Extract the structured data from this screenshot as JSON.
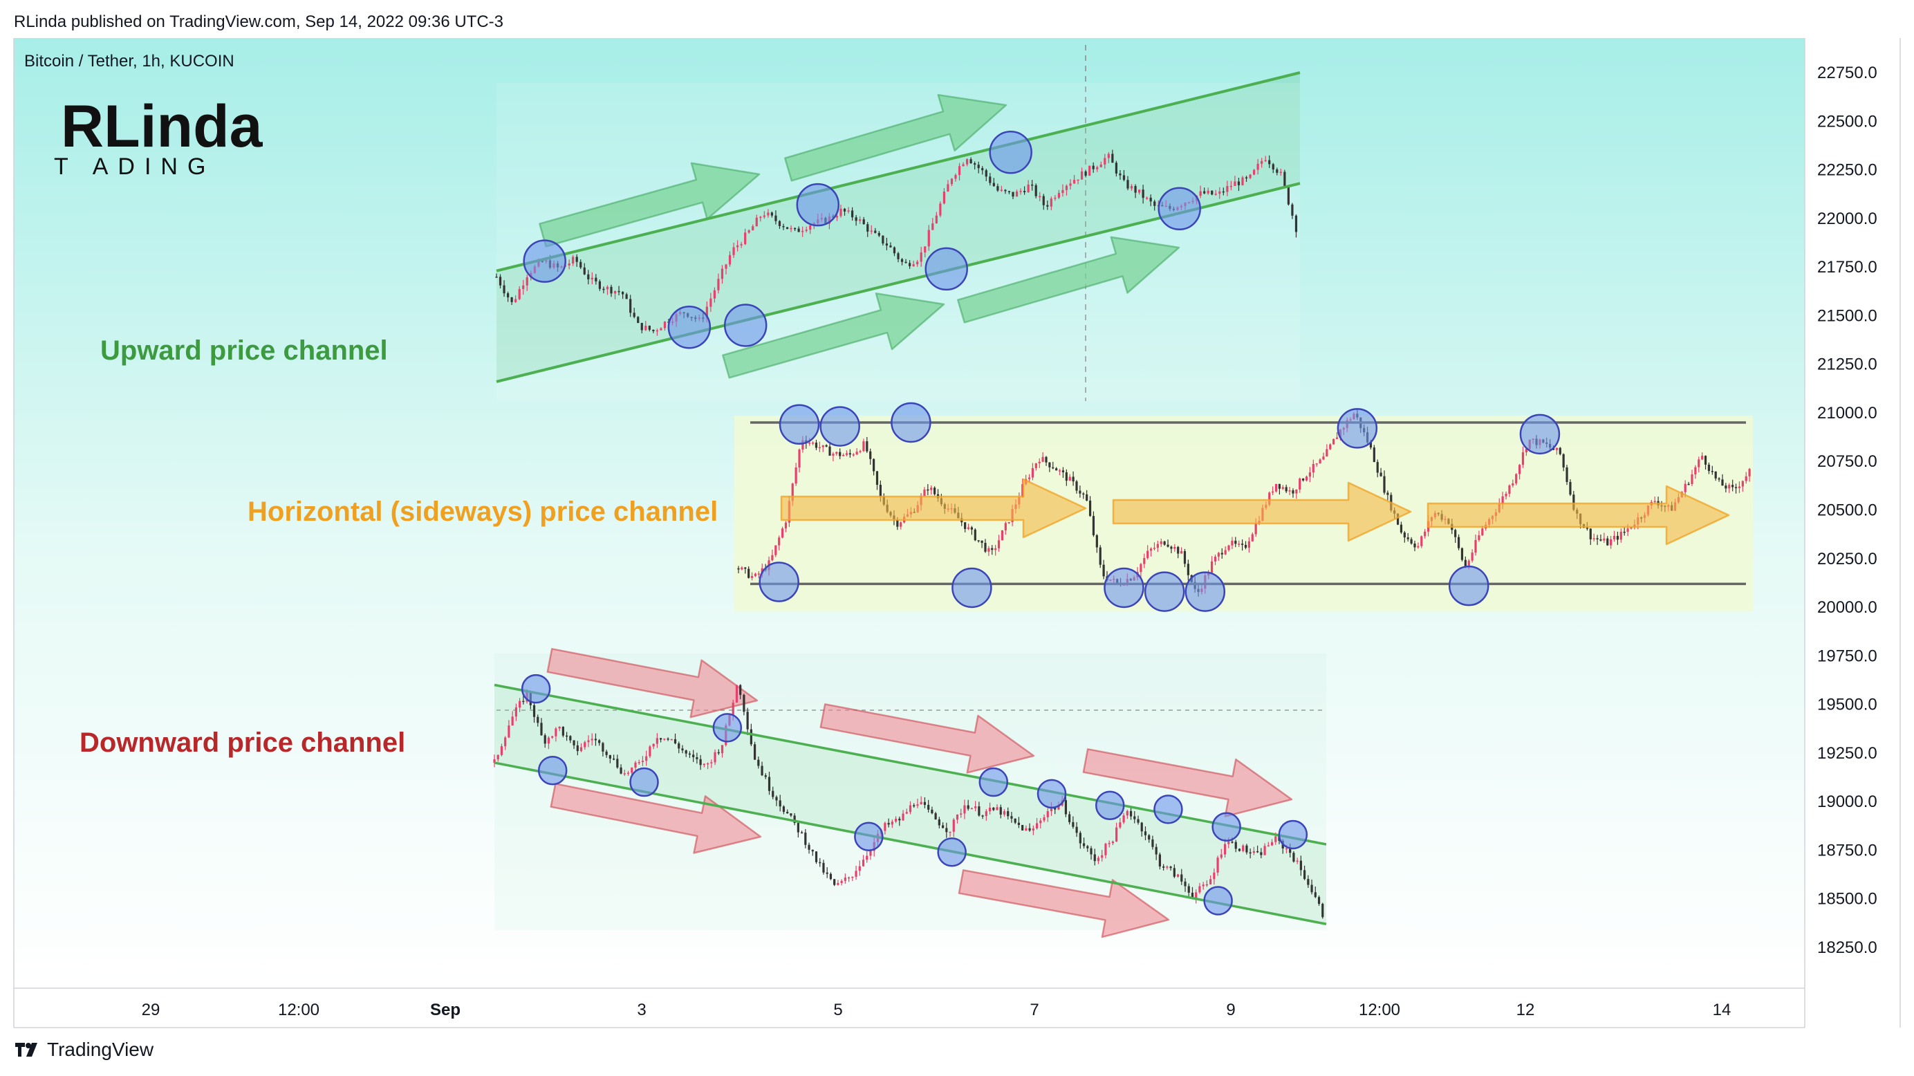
{
  "publish_line": "RLinda published on TradingView.com, Sep 14, 2022 09:36 UTC-3",
  "symbol_line": "Bitcoin / Tether, 1h, KUCOIN",
  "logo": {
    "main": "RLinda",
    "sub": "T  ADING"
  },
  "footer": {
    "brand": "TradingView",
    "icon": "tradingview-logo-icon"
  },
  "colors": {
    "up": "#3d9a40",
    "side": "#f0a020",
    "down": "#b8282a",
    "candle_up": "#e8406c",
    "candle_down": "#333333",
    "bg_top": "#a8eee8"
  },
  "chart_data": {
    "type": "candlestick-annotated",
    "y_axis": {
      "min": 18000,
      "max": 22950,
      "ticks": [
        "22750.0",
        "22500.0",
        "22250.0",
        "22000.0",
        "21750.0",
        "21500.0",
        "21250.0",
        "21000.0",
        "20750.0",
        "20500.0",
        "20250.0",
        "20000.0",
        "19750.0",
        "19500.0",
        "19250.0",
        "19000.0",
        "18750.0",
        "18500.0",
        "18250.0"
      ]
    },
    "x_axis": {
      "ticks": [
        "29",
        "12:00",
        "Sep",
        "3",
        "5",
        "7",
        "9",
        "12:00",
        "12",
        "14"
      ]
    },
    "channels": [
      {
        "label": "Upward price channel",
        "color": "#3d9a40",
        "upper_line": [
          21730,
          22750
        ],
        "lower_line": [
          21160,
          22180
        ],
        "price_path": [
          21700,
          21560,
          21720,
          21780,
          21740,
          21790,
          21680,
          21640,
          21620,
          21450,
          21420,
          21480,
          21520,
          21470,
          21650,
          21830,
          21920,
          22030,
          21980,
          21930,
          21970,
          21990,
          22040,
          22000,
          21920,
          21860,
          21760,
          21800,
          22010,
          22210,
          22320,
          22240,
          22140,
          22120,
          22170,
          22060,
          22160,
          22210,
          22260,
          22320,
          22180,
          22130,
          22060,
          22050,
          22090,
          22130,
          22120,
          22180,
          22200,
          22320,
          22230,
          21950
        ],
        "touches": [
          [
            0.06,
            21780
          ],
          [
            0.24,
            21440
          ],
          [
            0.31,
            21450
          ],
          [
            0.4,
            22070
          ],
          [
            0.56,
            21740
          ],
          [
            0.64,
            22340
          ],
          [
            0.85,
            22050
          ]
        ]
      },
      {
        "label": "Horizontal (sideways) price channel",
        "color": "#f0a020",
        "upper_line": [
          20950,
          20950
        ],
        "lower_line": [
          20120,
          20120
        ],
        "price_path": [
          20200,
          20150,
          20230,
          20450,
          20870,
          20830,
          20790,
          20780,
          20840,
          20560,
          20430,
          20490,
          20620,
          20530,
          20450,
          20360,
          20270,
          20430,
          20620,
          20770,
          20720,
          20650,
          20560,
          20170,
          20120,
          20160,
          20290,
          20340,
          20280,
          20060,
          20230,
          20330,
          20300,
          20470,
          20640,
          20590,
          20690,
          20760,
          20900,
          21000,
          20820,
          20580,
          20380,
          20310,
          20490,
          20440,
          20200,
          20390,
          20510,
          20650,
          20860,
          20840,
          20790,
          20480,
          20360,
          20330,
          20380,
          20460,
          20550,
          20500,
          20630,
          20780,
          20640,
          20600,
          20700
        ],
        "touches": [
          [
            0.04,
            20130
          ],
          [
            0.06,
            20940
          ],
          [
            0.1,
            20930
          ],
          [
            0.17,
            20950
          ],
          [
            0.23,
            20100
          ],
          [
            0.38,
            20100
          ],
          [
            0.42,
            20080
          ],
          [
            0.46,
            20080
          ],
          [
            0.61,
            20920
          ],
          [
            0.72,
            20110
          ],
          [
            0.79,
            20890
          ]
        ]
      },
      {
        "label": "Downward price channel",
        "color": "#b8282a",
        "upper_line": [
          19600,
          18780
        ],
        "lower_line": [
          19200,
          18370
        ],
        "price_path": [
          19200,
          19420,
          19560,
          19310,
          19380,
          19260,
          19330,
          19250,
          19140,
          19200,
          19340,
          19310,
          19230,
          19180,
          19290,
          19620,
          19230,
          19060,
          18940,
          18820,
          18670,
          18560,
          18620,
          18740,
          18870,
          18910,
          19010,
          18920,
          18850,
          18990,
          18940,
          18960,
          18890,
          18840,
          18950,
          18990,
          18800,
          18700,
          18800,
          18960,
          18850,
          18680,
          18620,
          18520,
          18580,
          18800,
          18760,
          18720,
          18810,
          18740,
          18600,
          18420
        ],
        "touches": [
          [
            0.05,
            19580
          ],
          [
            0.07,
            19160
          ],
          [
            0.18,
            19100
          ],
          [
            0.28,
            19380
          ],
          [
            0.45,
            18820
          ],
          [
            0.55,
            18740
          ],
          [
            0.6,
            19100
          ],
          [
            0.67,
            19040
          ],
          [
            0.74,
            18980
          ],
          [
            0.81,
            18960
          ],
          [
            0.87,
            18490
          ],
          [
            0.88,
            18870
          ],
          [
            0.96,
            18830
          ]
        ]
      }
    ]
  }
}
